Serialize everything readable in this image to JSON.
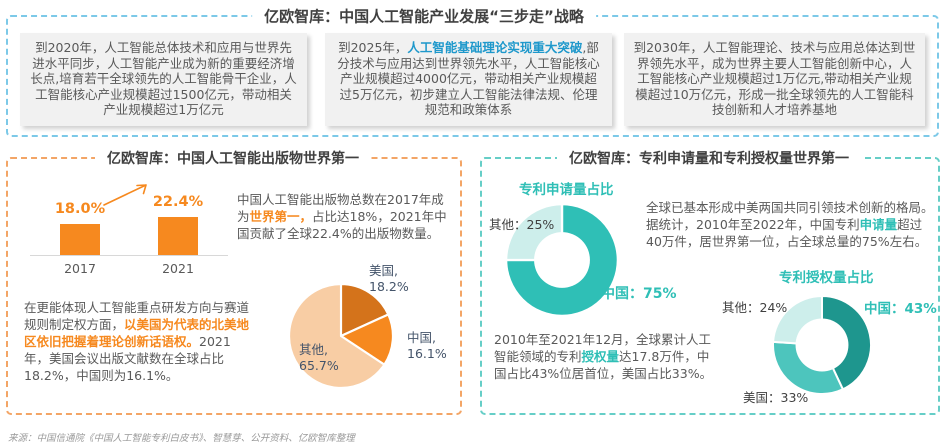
{
  "top": {
    "title": "亿欧智库：中国人工智能产业发展“三步走”战略",
    "boxes": [
      {
        "segments": [
          {
            "t": "到2020年，人工智能总体技术和应用与世界先进水平同步，人工智能产业成为新的重要经济增长点,培育若干全球领先的人工智能骨干企业，人工智能核心产业规模超过1500亿元，带动相关产业规模超过1万亿元"
          }
        ]
      },
      {
        "segments": [
          {
            "t": "到2025年，"
          },
          {
            "t": "人工智能基础理论实现重大突破",
            "s": "blue"
          },
          {
            "t": ",部分技术与应用达到世界领先水平，人工智能核心产业规模超过4000亿元，带动相关产业规模超过5万亿元，初步建立人工智能法律法规、伦理规范和政策体系"
          }
        ]
      },
      {
        "segments": [
          {
            "t": "到2030年，人工智能理论、技术与应用总体达到世界领先水平，成为世界主要人工智能创新中心，人工智能核心产业规模超过1万亿元,带动相关产业规模超过10万亿元，形成一批全球领先的人工智能科技创新和人才培养基地"
          }
        ]
      }
    ]
  },
  "left_section": {
    "title": "亿欧智库：中国人工智能出版物世界第一",
    "para1": {
      "segments": [
        {
          "t": "中国人工智能出版物总数在2017年成为"
        },
        {
          "t": "世界第一，",
          "s": "orange"
        },
        {
          "t": "占比达18%，2021年中国贡献了全球22.4%的出版物数量。"
        }
      ]
    },
    "para2": {
      "segments": [
        {
          "t": "在更能体现人工智能重点研发方向与赛道规则制定权方面，"
        },
        {
          "t": "以美国为代表的北美地区依旧把握着理论创新话语权。",
          "s": "orange"
        },
        {
          "t": "2021年，美国会议出版文献数在全球占比18.2%，中国则为16.1%。"
        }
      ]
    }
  },
  "right_section": {
    "title": "亿欧智库：专利申请量和专利授权量世界第一",
    "para1": {
      "segments": [
        {
          "t": "全球已基本形成中美两国共同引领技术创新的格局。据统计，2010年至2022年，中国专利"
        },
        {
          "t": "申请量",
          "s": "teal"
        },
        {
          "t": "超过40万件，居世界第一位，占全球总量的75%左右。"
        }
      ]
    },
    "para2": {
      "segments": [
        {
          "t": "2010年至2021年12月，全球累计人工智能领域的专利"
        },
        {
          "t": "授权量",
          "s": "teal"
        },
        {
          "t": "达17.8万件，中国占比43%位居首位，美国占比33%。"
        }
      ]
    }
  },
  "source": "来源：中国信通院《中国人工智能专利白皮书》、智慧芽、公开资料、亿欧智库整理",
  "colors": {
    "top_border": "#7CC9E8",
    "left_border": "#F3A566",
    "right_border": "#66CEC7",
    "orange": "#F6891F",
    "dark_orange": "#D4731B",
    "light_orange": "#F8CDA4",
    "teal": "#2FBFB6",
    "dark_teal": "#1E968E",
    "light_teal": "#CDEEEB",
    "blue_highlight": "#1E98CB",
    "body_text": "#595959",
    "title_text": "#404040"
  },
  "chart_data": [
    {
      "id": "china-ai-publications-share",
      "type": "bar",
      "categories": [
        "2017",
        "2021"
      ],
      "values": [
        18.0,
        22.4
      ],
      "value_labels": [
        "18.0%",
        "22.4%"
      ],
      "unit": "%",
      "bar_color": "#F6891F",
      "ylim": [
        0,
        25
      ],
      "grid": false
    },
    {
      "id": "ai-conference-publications-share-2021",
      "type": "pie",
      "slices": [
        {
          "name": "美国",
          "value": 18.2,
          "color": "#D4731B",
          "label_name": "美国,",
          "label_value": "18.2%"
        },
        {
          "name": "中国",
          "value": 16.1,
          "color": "#F6891F",
          "label_name": "中国,",
          "label_value": "16.1%"
        },
        {
          "name": "其他",
          "value": 65.7,
          "color": "#F8CDA4",
          "label_name": "其他,",
          "label_value": "65.7%"
        }
      ]
    },
    {
      "id": "patent-application-share",
      "type": "donut",
      "hole_ratio": 0.5,
      "title": "专利申请量占比",
      "slices": [
        {
          "name": "中国",
          "value": 75,
          "color": "#2FBFB6",
          "label": "中国：75%"
        },
        {
          "name": "其他",
          "value": 25,
          "color": "#CDEEEB",
          "label": "其他：25%"
        }
      ]
    },
    {
      "id": "patent-grant-share",
      "type": "donut",
      "hole_ratio": 0.54,
      "title": "专利授权量占比",
      "slices": [
        {
          "name": "中国",
          "value": 43,
          "color": "#1E968E",
          "label": "中国：43%"
        },
        {
          "name": "美国",
          "value": 33,
          "color": "#4DC5BD",
          "label": "美国：33%"
        },
        {
          "name": "其他",
          "value": 24,
          "color": "#CDEEEB",
          "label": "其他：24%"
        }
      ]
    }
  ]
}
